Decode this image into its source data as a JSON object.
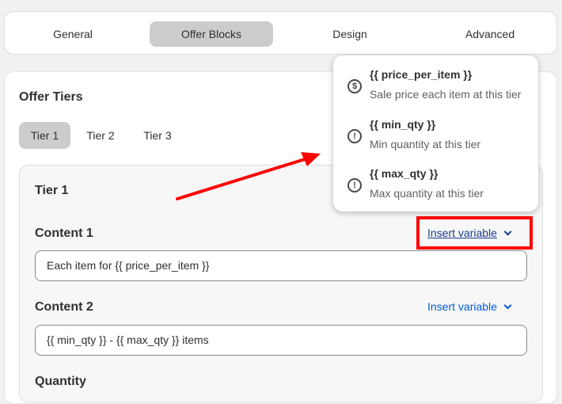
{
  "top_tabs": [
    {
      "label": "General"
    },
    {
      "label": "Offer Blocks",
      "active": true
    },
    {
      "label": "Design"
    },
    {
      "label": "Advanced"
    }
  ],
  "section_title": "Offer Tiers",
  "tier_tabs": [
    {
      "label": "Tier 1",
      "active": true
    },
    {
      "label": "Tier 2"
    },
    {
      "label": "Tier 3"
    }
  ],
  "tier": {
    "title": "Tier 1",
    "content1": {
      "label": "Content 1",
      "insert_label": "Insert variable",
      "value": "Each item for {{ price_per_item }}"
    },
    "content2": {
      "label": "Content 2",
      "insert_label": "Insert variable",
      "value": "{{ min_qty }} - {{ max_qty }} items"
    },
    "quantity_label": "Quantity"
  },
  "variables_menu": [
    {
      "name": "{{ price_per_item }}",
      "desc": "Sale price each item at this tier",
      "icon": "dollar-circle-icon"
    },
    {
      "name": "{{ min_qty }}",
      "desc": "Min quantity at this tier",
      "icon": "alert-circle-icon"
    },
    {
      "name": "{{ max_qty }}",
      "desc": "Max quantity at this tier",
      "icon": "alert-circle-icon"
    }
  ],
  "colors": {
    "link": "#005bd3",
    "annotation": "#ff0000",
    "active_tab": "#cccccc"
  }
}
